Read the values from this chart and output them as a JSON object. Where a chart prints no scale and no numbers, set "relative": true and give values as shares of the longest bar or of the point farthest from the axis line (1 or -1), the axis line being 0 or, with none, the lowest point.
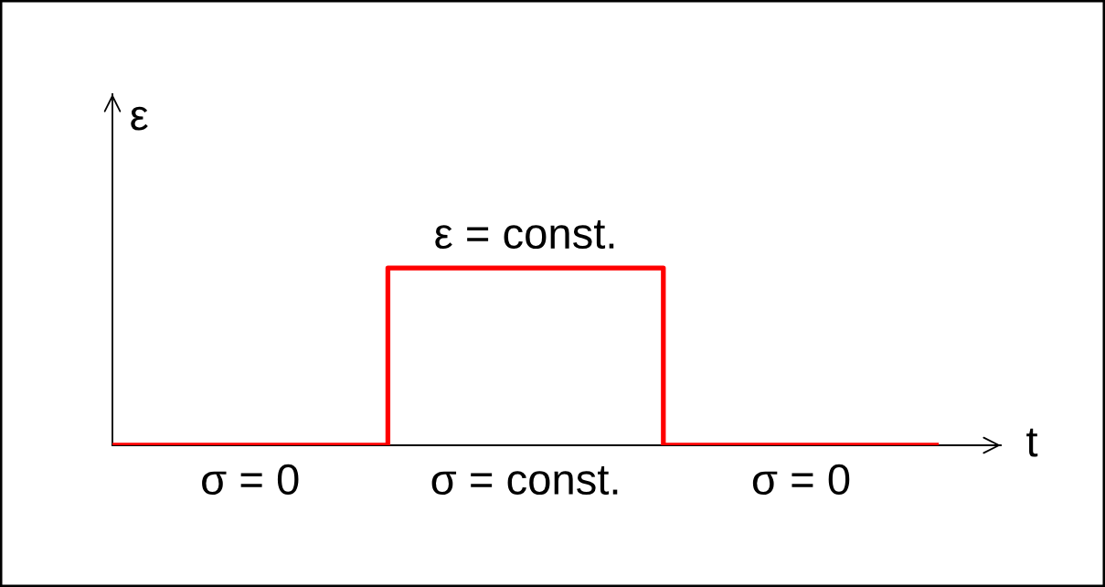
{
  "chart_data": {
    "type": "step",
    "relative": true,
    "categories": [
      null,
      null,
      null,
      null
    ],
    "series": [
      {
        "color": "#ff0000",
        "values": [
          0,
          1,
          0,
          0
        ]
      }
    ],
    "xlabel": "t",
    "ylabel": "ε",
    "annotations": [
      "ε = const.",
      "σ = 0",
      "σ = const.",
      "σ = 0"
    ],
    "legend": false,
    "marker": "none",
    "line_style": "solid"
  }
}
